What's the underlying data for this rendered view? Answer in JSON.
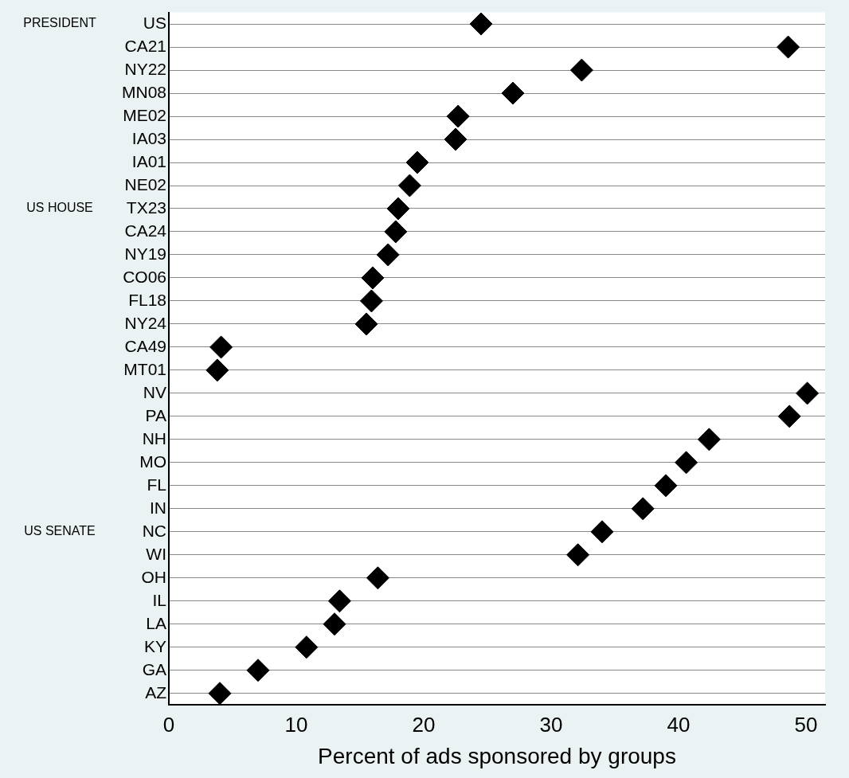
{
  "chart_data": {
    "type": "scatter",
    "orientation": "horizontal",
    "xlabel": "Percent of ads sponsored by groups",
    "categories": [
      "US",
      "CA21",
      "NY22",
      "MN08",
      "ME02",
      "IA03",
      "IA01",
      "NE02",
      "TX23",
      "CA24",
      "NY19",
      "CO06",
      "FL18",
      "NY24",
      "CA49",
      "MT01",
      "NV",
      "PA",
      "NH",
      "MO",
      "FL",
      "IN",
      "NC",
      "WI",
      "OH",
      "IL",
      "LA",
      "KY",
      "GA",
      "AZ"
    ],
    "series": [
      {
        "color": "#000000",
        "values": [
          24.5,
          null,
          null,
          null,
          null,
          null,
          null,
          null,
          null,
          null,
          null,
          null,
          null,
          null,
          null,
          null,
          null,
          null,
          null,
          null,
          null,
          null,
          null,
          null,
          null,
          null,
          null,
          null,
          null,
          null
        ]
      },
      {
        "color": "#000000",
        "values": [
          null,
          48.6,
          32.4,
          27.0,
          22.7,
          22.5,
          19.5,
          18.9,
          18.0,
          17.8,
          17.2,
          16.0,
          15.9,
          15.5,
          4.1,
          3.8,
          null,
          null,
          null,
          null,
          null,
          null,
          null,
          null,
          null,
          null,
          null,
          null,
          null,
          null
        ]
      },
      {
        "color": "#000000",
        "values": [
          null,
          null,
          null,
          null,
          null,
          null,
          null,
          null,
          null,
          null,
          null,
          null,
          null,
          null,
          null,
          null,
          50.1,
          48.7,
          42.4,
          40.6,
          39.0,
          37.2,
          34.0,
          32.1,
          16.4,
          13.4,
          13.0,
          10.8,
          7.0,
          4.0
        ]
      }
    ],
    "marker": "diamond",
    "grid": "y",
    "legend": false,
    "xlim": [
      0,
      51.5
    ],
    "xticks": [
      0,
      10,
      20,
      30,
      40,
      50
    ],
    "annotations": [
      "PRESIDENT",
      "US HOUSE",
      "US SENATE"
    ]
  }
}
